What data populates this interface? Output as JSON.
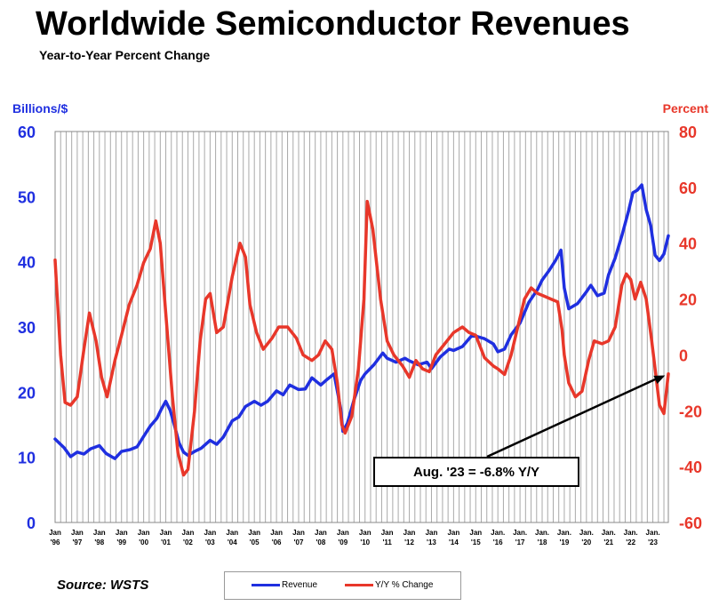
{
  "chart_data": {
    "type": "line",
    "title": "Worldwide Semiconductor Revenues",
    "subtitle": "Year-to-Year Percent Change",
    "ylabel_left": "Billions/$",
    "ylabel_right": "Percent",
    "ylim_left": [
      0,
      60
    ],
    "ylim_right": [
      -60,
      80
    ],
    "yticks_left": [
      "0",
      "10",
      "20",
      "30",
      "40",
      "50",
      "60"
    ],
    "yticks_right": [
      "-60",
      "-40",
      "-20",
      "0",
      "20",
      "40",
      "60",
      "80"
    ],
    "x_ticks": [
      [
        "Jan",
        "'96"
      ],
      [
        "Jan",
        "'97"
      ],
      [
        "Jan",
        "'98"
      ],
      [
        "Jan",
        "'99"
      ],
      [
        "Jan",
        "'00"
      ],
      [
        "Jan",
        "'01"
      ],
      [
        "Jan",
        "'02"
      ],
      [
        "Jan",
        "'03"
      ],
      [
        "Jan",
        "'04"
      ],
      [
        "Jan",
        "'05"
      ],
      [
        "Jan",
        "'06"
      ],
      [
        "Jan",
        "'07"
      ],
      [
        "Jan",
        "'08"
      ],
      [
        "Jan",
        "'09"
      ],
      [
        "Jan",
        "'10"
      ],
      [
        "Jan",
        "'11"
      ],
      [
        "Jan",
        "'12"
      ],
      [
        "Jan",
        "'13"
      ],
      [
        "Jan",
        "'14"
      ],
      [
        "Jan",
        "'15"
      ],
      [
        "Jan.",
        "'16"
      ],
      [
        "Jan.",
        "'17"
      ],
      [
        "Jan.",
        "'18"
      ],
      [
        "Jan.",
        "'19"
      ],
      [
        "Jan.",
        "'20"
      ],
      [
        "Jan.",
        "'21"
      ],
      [
        "Jan.",
        "'22"
      ],
      [
        "Jan.",
        "'23"
      ]
    ],
    "x_start": 1996.0,
    "x_end": 2023.7,
    "grid": "vertical",
    "series": [
      {
        "name": "Revenue",
        "axis": "left",
        "color": "#1f2fe0",
        "points": [
          [
            1996.0,
            12.8
          ],
          [
            1996.4,
            11.5
          ],
          [
            1996.7,
            10.1
          ],
          [
            1997.0,
            10.8
          ],
          [
            1997.3,
            10.5
          ],
          [
            1997.6,
            11.3
          ],
          [
            1998.0,
            11.8
          ],
          [
            1998.3,
            10.6
          ],
          [
            1998.7,
            9.8
          ],
          [
            1999.0,
            10.9
          ],
          [
            1999.4,
            11.2
          ],
          [
            1999.7,
            11.6
          ],
          [
            2000.0,
            13.2
          ],
          [
            2000.3,
            14.8
          ],
          [
            2000.6,
            16.0
          ],
          [
            2000.8,
            17.4
          ],
          [
            2001.0,
            18.6
          ],
          [
            2001.2,
            17.2
          ],
          [
            2001.4,
            14.8
          ],
          [
            2001.6,
            12.2
          ],
          [
            2001.8,
            10.8
          ],
          [
            2002.0,
            10.3
          ],
          [
            2002.3,
            10.9
          ],
          [
            2002.6,
            11.4
          ],
          [
            2003.0,
            12.6
          ],
          [
            2003.3,
            12.0
          ],
          [
            2003.6,
            13.1
          ],
          [
            2004.0,
            15.6
          ],
          [
            2004.3,
            16.2
          ],
          [
            2004.6,
            17.8
          ],
          [
            2005.0,
            18.6
          ],
          [
            2005.3,
            18.0
          ],
          [
            2005.6,
            18.6
          ],
          [
            2006.0,
            20.2
          ],
          [
            2006.3,
            19.6
          ],
          [
            2006.6,
            21.1
          ],
          [
            2007.0,
            20.4
          ],
          [
            2007.3,
            20.5
          ],
          [
            2007.6,
            22.2
          ],
          [
            2008.0,
            21.1
          ],
          [
            2008.3,
            22.0
          ],
          [
            2008.6,
            22.8
          ],
          [
            2008.9,
            17.5
          ],
          [
            2009.0,
            14.0
          ],
          [
            2009.2,
            15.2
          ],
          [
            2009.5,
            18.8
          ],
          [
            2009.8,
            21.8
          ],
          [
            2010.0,
            22.8
          ],
          [
            2010.4,
            24.2
          ],
          [
            2010.8,
            26.0
          ],
          [
            2011.0,
            25.2
          ],
          [
            2011.4,
            24.6
          ],
          [
            2011.8,
            25.2
          ],
          [
            2012.0,
            24.8
          ],
          [
            2012.4,
            24.2
          ],
          [
            2012.8,
            24.6
          ],
          [
            2013.0,
            23.6
          ],
          [
            2013.4,
            25.4
          ],
          [
            2013.8,
            26.6
          ],
          [
            2014.0,
            26.4
          ],
          [
            2014.4,
            27.0
          ],
          [
            2014.8,
            28.6
          ],
          [
            2015.0,
            28.6
          ],
          [
            2015.4,
            28.2
          ],
          [
            2015.8,
            27.4
          ],
          [
            2016.0,
            26.2
          ],
          [
            2016.3,
            26.6
          ],
          [
            2016.6,
            28.8
          ],
          [
            2017.0,
            30.6
          ],
          [
            2017.4,
            33.8
          ],
          [
            2017.8,
            35.8
          ],
          [
            2018.0,
            37.2
          ],
          [
            2018.3,
            38.6
          ],
          [
            2018.6,
            40.2
          ],
          [
            2018.85,
            41.8
          ],
          [
            2019.0,
            36.0
          ],
          [
            2019.2,
            32.8
          ],
          [
            2019.6,
            33.6
          ],
          [
            2020.0,
            35.4
          ],
          [
            2020.2,
            36.4
          ],
          [
            2020.5,
            34.8
          ],
          [
            2020.8,
            35.2
          ],
          [
            2021.0,
            38.0
          ],
          [
            2021.3,
            40.6
          ],
          [
            2021.6,
            44.0
          ],
          [
            2021.9,
            47.8
          ],
          [
            2022.1,
            50.6
          ],
          [
            2022.3,
            51.0
          ],
          [
            2022.5,
            51.8
          ],
          [
            2022.7,
            48.0
          ],
          [
            2022.9,
            45.6
          ],
          [
            2023.1,
            41.0
          ],
          [
            2023.3,
            40.2
          ],
          [
            2023.5,
            41.2
          ],
          [
            2023.7,
            44.0
          ]
        ]
      },
      {
        "name": "Y/Y % Change",
        "axis": "right",
        "color": "#e8372a",
        "points": [
          [
            1996.0,
            34
          ],
          [
            1996.25,
            0
          ],
          [
            1996.45,
            -17
          ],
          [
            1996.7,
            -18
          ],
          [
            1997.0,
            -15
          ],
          [
            1997.3,
            2
          ],
          [
            1997.55,
            15
          ],
          [
            1997.85,
            5
          ],
          [
            1998.1,
            -8
          ],
          [
            1998.35,
            -15
          ],
          [
            1998.7,
            -2
          ],
          [
            1999.0,
            7
          ],
          [
            1999.35,
            18
          ],
          [
            1999.7,
            25
          ],
          [
            2000.0,
            33
          ],
          [
            2000.3,
            38
          ],
          [
            2000.55,
            48
          ],
          [
            2000.75,
            40
          ],
          [
            2001.0,
            15
          ],
          [
            2001.3,
            -15
          ],
          [
            2001.55,
            -35
          ],
          [
            2001.8,
            -43
          ],
          [
            2002.0,
            -41
          ],
          [
            2002.3,
            -20
          ],
          [
            2002.55,
            5
          ],
          [
            2002.8,
            20
          ],
          [
            2003.0,
            22
          ],
          [
            2003.3,
            8
          ],
          [
            2003.6,
            10
          ],
          [
            2004.0,
            28
          ],
          [
            2004.35,
            40
          ],
          [
            2004.6,
            35
          ],
          [
            2004.8,
            18
          ],
          [
            2005.1,
            8
          ],
          [
            2005.4,
            2
          ],
          [
            2005.8,
            6
          ],
          [
            2006.1,
            10
          ],
          [
            2006.5,
            10
          ],
          [
            2006.9,
            6
          ],
          [
            2007.2,
            0
          ],
          [
            2007.6,
            -2
          ],
          [
            2007.9,
            0
          ],
          [
            2008.2,
            5
          ],
          [
            2008.5,
            2
          ],
          [
            2008.75,
            -10
          ],
          [
            2008.95,
            -25
          ],
          [
            2009.1,
            -28
          ],
          [
            2009.4,
            -22
          ],
          [
            2009.7,
            -5
          ],
          [
            2009.95,
            20
          ],
          [
            2010.1,
            55
          ],
          [
            2010.35,
            45
          ],
          [
            2010.7,
            20
          ],
          [
            2011.0,
            5
          ],
          [
            2011.3,
            0
          ],
          [
            2011.7,
            -4
          ],
          [
            2012.0,
            -8
          ],
          [
            2012.3,
            -2
          ],
          [
            2012.6,
            -5
          ],
          [
            2012.9,
            -6
          ],
          [
            2013.2,
            0
          ],
          [
            2013.6,
            4
          ],
          [
            2014.0,
            8
          ],
          [
            2014.4,
            10
          ],
          [
            2014.7,
            8
          ],
          [
            2015.0,
            7
          ],
          [
            2015.4,
            -1
          ],
          [
            2015.8,
            -4
          ],
          [
            2016.0,
            -5
          ],
          [
            2016.3,
            -7
          ],
          [
            2016.6,
            0
          ],
          [
            2016.9,
            10
          ],
          [
            2017.2,
            20
          ],
          [
            2017.5,
            24
          ],
          [
            2017.8,
            22
          ],
          [
            2018.1,
            21
          ],
          [
            2018.4,
            20
          ],
          [
            2018.7,
            19
          ],
          [
            2018.9,
            9
          ],
          [
            2019.0,
            0
          ],
          [
            2019.2,
            -10
          ],
          [
            2019.5,
            -15
          ],
          [
            2019.8,
            -13
          ],
          [
            2020.1,
            -2
          ],
          [
            2020.35,
            5
          ],
          [
            2020.7,
            4
          ],
          [
            2021.0,
            5
          ],
          [
            2021.3,
            10
          ],
          [
            2021.6,
            25
          ],
          [
            2021.8,
            29
          ],
          [
            2022.0,
            27
          ],
          [
            2022.2,
            20
          ],
          [
            2022.45,
            26
          ],
          [
            2022.7,
            20
          ],
          [
            2022.95,
            5
          ],
          [
            2023.1,
            -5
          ],
          [
            2023.3,
            -18
          ],
          [
            2023.5,
            -21
          ],
          [
            2023.7,
            -6.8
          ]
        ]
      }
    ],
    "annotation": {
      "label": "Aug. '23 = -6.8% Y/Y",
      "x": 2023.7,
      "y": -6.8,
      "axis": "right"
    },
    "legend_placement": "bottom-center"
  },
  "source": "Source: WSTS"
}
